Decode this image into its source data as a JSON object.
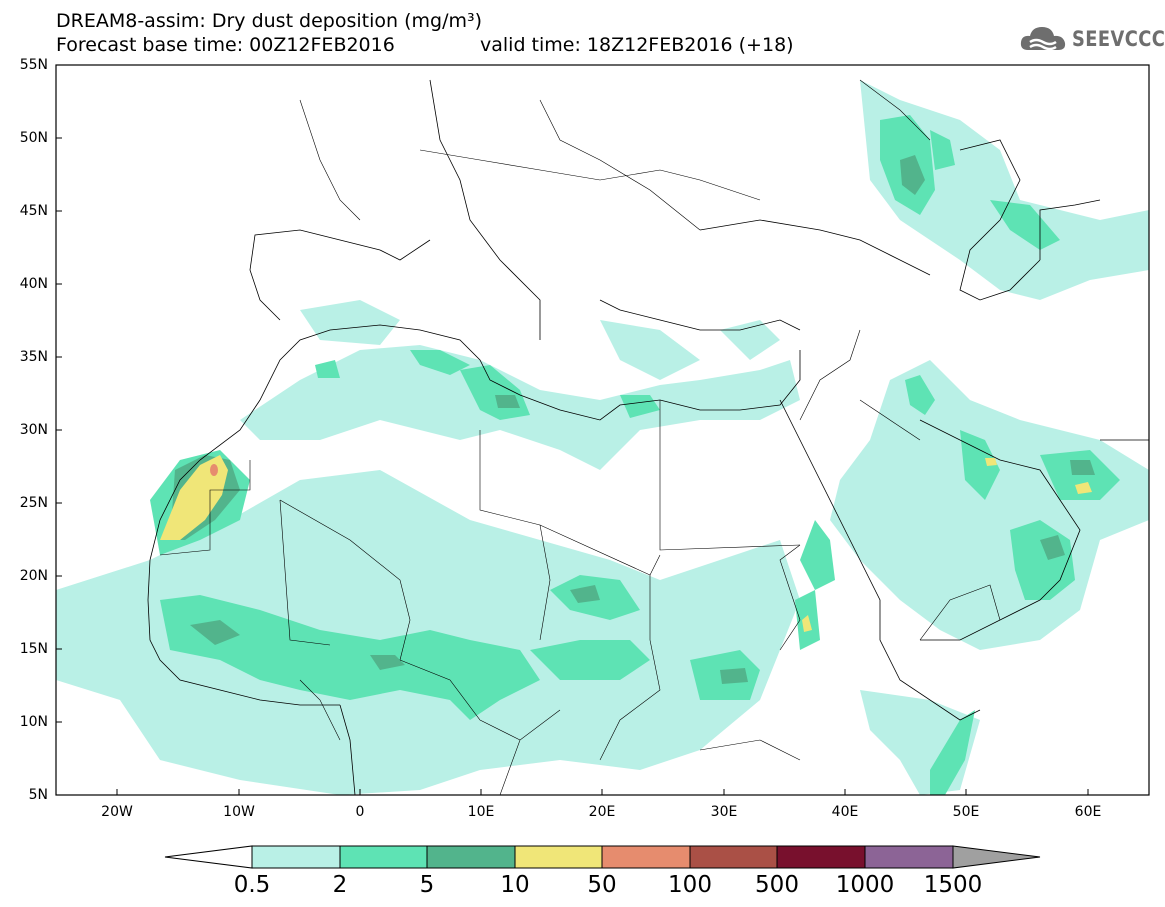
{
  "header": {
    "title_line1": "DREAM8-assim: Dry dust deposition (mg/m³)",
    "title_line2": "Forecast base time: 00Z12FEB2016",
    "valid_time": "valid time: 18Z12FEB2016 (+18)",
    "logo_text": "SEEVCCC"
  },
  "map": {
    "lat_labels": [
      "55N",
      "50N",
      "45N",
      "40N",
      "35N",
      "30N",
      "25N",
      "20N",
      "15N",
      "10N",
      "5N"
    ],
    "lon_labels": [
      "20W",
      "10W",
      "0",
      "10E",
      "20E",
      "30E",
      "40E",
      "50E",
      "60E"
    ]
  },
  "colorbar": {
    "labels": [
      "0.5",
      "2",
      "5",
      "10",
      "50",
      "100",
      "500",
      "1000",
      "1500"
    ],
    "colors": [
      "#b9f0e6",
      "#5ee3b4",
      "#52b48c",
      "#f0e678",
      "#e68c6e",
      "#aa5046",
      "#78102d",
      "#8c6496"
    ],
    "end_colors": {
      "low": "#ffffff",
      "high": "#a0a0a0"
    }
  }
}
